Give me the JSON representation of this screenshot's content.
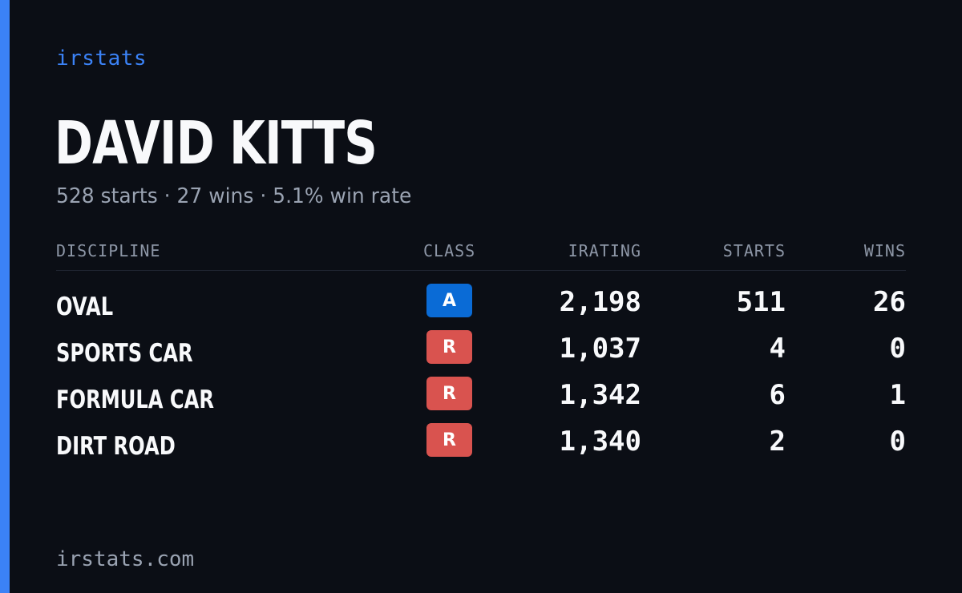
{
  "brand": "irstats",
  "driver": {
    "name": "DAVID KITTS",
    "summary": "528 starts · 27 wins · 5.1% win rate"
  },
  "colors": {
    "accent": "#3b82f6",
    "class_A": "#0a6bd6",
    "class_R": "#d9534f",
    "background": "#0b0e15"
  },
  "table": {
    "headers": {
      "discipline": "DISCIPLINE",
      "class": "CLASS",
      "irating": "IRATING",
      "starts": "STARTS",
      "wins": "WINS"
    },
    "rows": [
      {
        "discipline": "OVAL",
        "class": "A",
        "irating": "2,198",
        "starts": "511",
        "wins": "26"
      },
      {
        "discipline": "SPORTS CAR",
        "class": "R",
        "irating": "1,037",
        "starts": "4",
        "wins": "0"
      },
      {
        "discipline": "FORMULA CAR",
        "class": "R",
        "irating": "1,342",
        "starts": "6",
        "wins": "1"
      },
      {
        "discipline": "DIRT ROAD",
        "class": "R",
        "irating": "1,340",
        "starts": "2",
        "wins": "0"
      }
    ]
  },
  "footer": "irstats.com"
}
